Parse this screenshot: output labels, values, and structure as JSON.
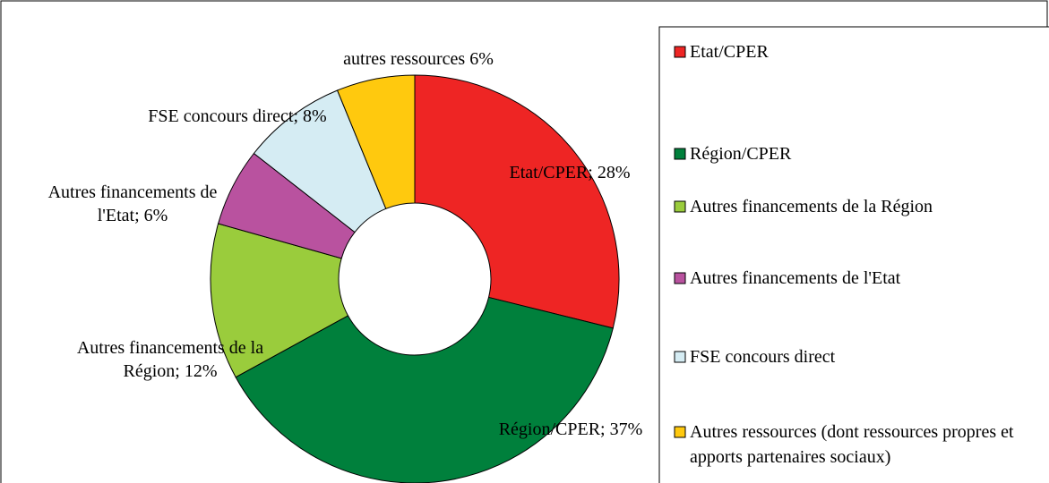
{
  "chart_data": {
    "type": "donut",
    "categories": [
      "Etat/CPER",
      "Région/CPER",
      "Autres financements de la Région",
      "Autres financements de l'Etat",
      "FSE concours direct",
      "Autres ressources (dont ressources propres et apports partenaires sociaux)"
    ],
    "values": [
      28,
      37,
      12,
      6,
      8,
      6
    ],
    "value_labels": [
      "Etat/CPER; 28%",
      "Région/CPER; 37%",
      "Autres financements de la Région; 12%",
      "Autres financements de l'Etat; 6%",
      "FSE concours direct; 8%",
      "autres ressources  6%"
    ],
    "colors": [
      "#ee2524",
      "#00803c",
      "#9acc3c",
      "#b9529f",
      "#d5ecf3",
      "#ffc90e"
    ],
    "legend": "right"
  }
}
